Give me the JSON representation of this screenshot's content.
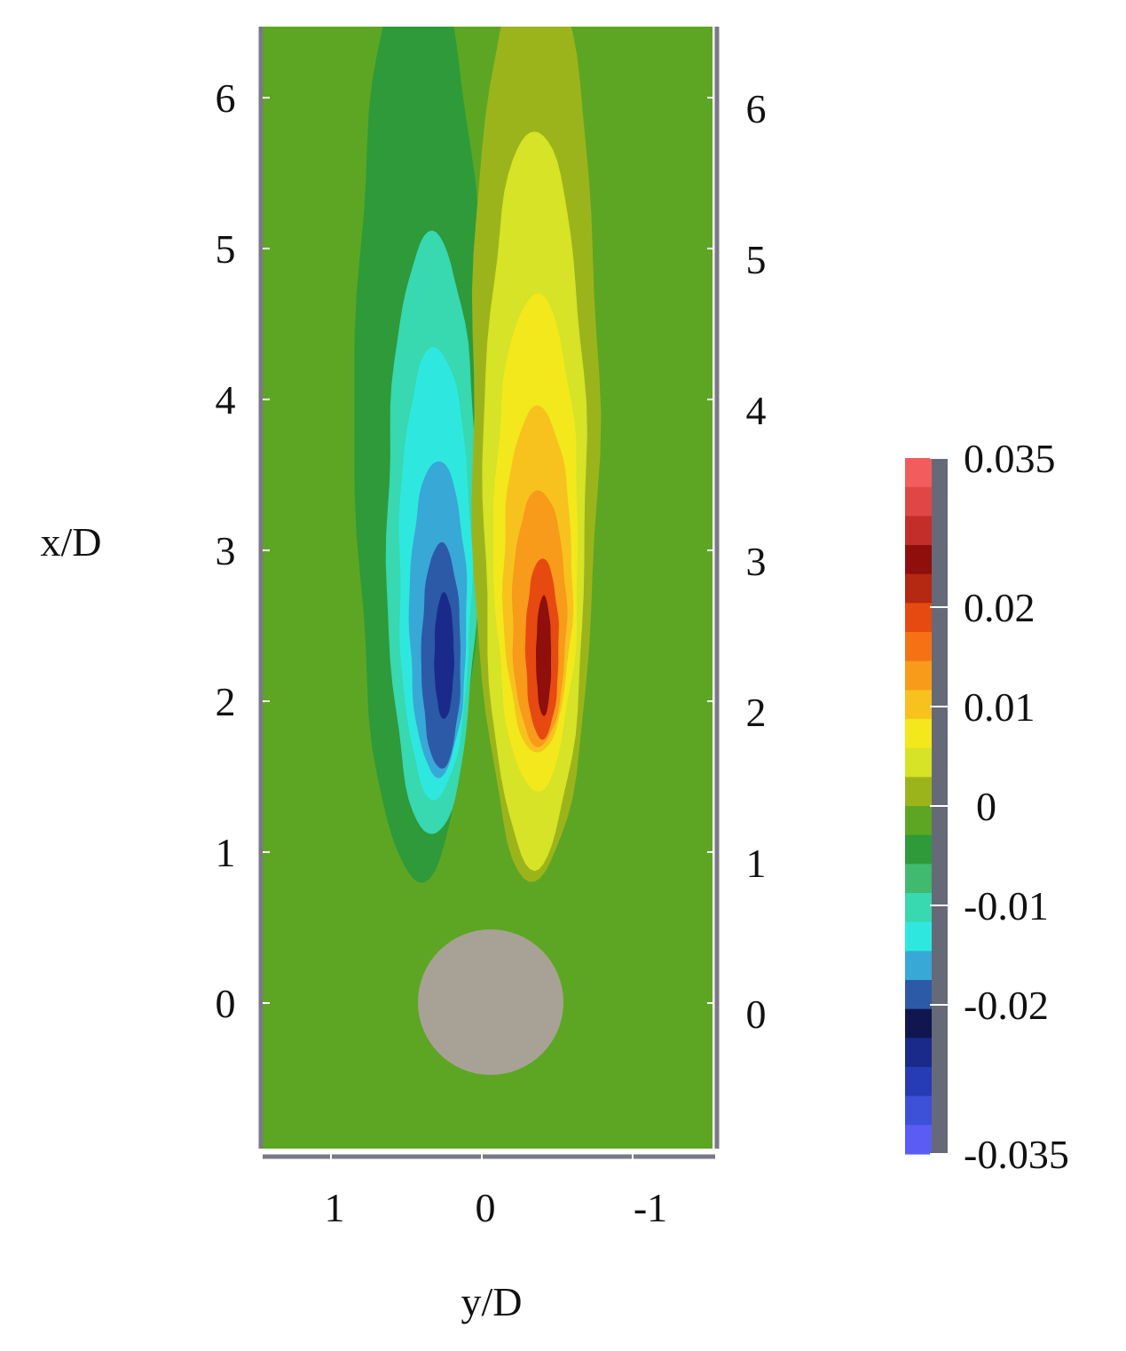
{
  "chart_data": {
    "type": "heatmap",
    "title": "",
    "xlabel": "y/D",
    "ylabel": "x/D",
    "x_axis": {
      "ticks": [
        1,
        0,
        -1
      ],
      "tick_labels": [
        "1",
        "0",
        "-1"
      ],
      "range": [
        1.5,
        -1.5
      ],
      "reversed": true
    },
    "y_axis": {
      "ticks": [
        0,
        1,
        2,
        3,
        4,
        5,
        6
      ],
      "tick_labels": [
        "0",
        "1",
        "2",
        "3",
        "4",
        "5",
        "6"
      ],
      "range": [
        -0.95,
        6.5
      ],
      "mirrored_right": true
    },
    "grid": false,
    "cylinder": {
      "center": [
        0,
        0
      ],
      "diameter": 1,
      "color": "#a8a296"
    },
    "colorbar": {
      "placement": "right",
      "min": -0.035,
      "max": 0.035,
      "tick_values": [
        0.035,
        0.02,
        0.01,
        0,
        -0.01,
        -0.02,
        -0.035
      ],
      "tick_labels": [
        "0.035",
        "0.02",
        "0.01",
        "0",
        "-0.01",
        "-0.02",
        "-0.035"
      ],
      "colors_top_to_bottom": [
        "#f25c5c",
        "#e04646",
        "#c42e2a",
        "#8e0f0c",
        "#b52812",
        "#e64a10",
        "#f57214",
        "#f89a1a",
        "#f7c21e",
        "#f2e81c",
        "#d6e326",
        "#9cb41c",
        "#5da623",
        "#2e9a3a",
        "#3fba6e",
        "#38d8b0",
        "#2ee8e0",
        "#38a8d6",
        "#2c5aa6",
        "#101650",
        "#1a2a8a",
        "#263cb4",
        "#3c50d8",
        "#5a5cf4"
      ]
    },
    "contours": {
      "background_level": -0.0025,
      "note_levels": "negative lobe at y/D>0, positive lobe at y/D<0",
      "negative_lobe": [
        {
          "level": -0.005,
          "cx": 0.42,
          "cy": 3.9,
          "rx": 0.42,
          "ry": 3.1
        },
        {
          "level": -0.01,
          "cx": 0.33,
          "cy": 3.1,
          "rx": 0.3,
          "ry": 2.0
        },
        {
          "level": -0.0125,
          "cx": 0.31,
          "cy": 2.85,
          "rx": 0.24,
          "ry": 1.5
        },
        {
          "level": -0.015,
          "cx": 0.29,
          "cy": 2.55,
          "rx": 0.19,
          "ry": 1.05
        },
        {
          "level": -0.02,
          "cx": 0.27,
          "cy": 2.3,
          "rx": 0.13,
          "ry": 0.75
        },
        {
          "level": -0.025,
          "cx": 0.25,
          "cy": 2.3,
          "rx": 0.065,
          "ry": 0.42
        }
      ],
      "positive_lobe": [
        {
          "level": 0.0025,
          "cx": -0.35,
          "cy": 3.9,
          "rx": 0.42,
          "ry": 3.1
        },
        {
          "level": 0.005,
          "cx": -0.35,
          "cy": 3.35,
          "rx": 0.34,
          "ry": 2.45
        },
        {
          "level": 0.0075,
          "cx": -0.36,
          "cy": 3.05,
          "rx": 0.28,
          "ry": 1.65
        },
        {
          "level": 0.01,
          "cx": -0.37,
          "cy": 2.8,
          "rx": 0.23,
          "ry": 1.15
        },
        {
          "level": 0.0125,
          "cx": -0.38,
          "cy": 2.55,
          "rx": 0.18,
          "ry": 0.85
        },
        {
          "level": 0.02,
          "cx": -0.4,
          "cy": 2.35,
          "rx": 0.11,
          "ry": 0.6
        },
        {
          "level": 0.025,
          "cx": -0.41,
          "cy": 2.3,
          "rx": 0.05,
          "ry": 0.4
        }
      ]
    }
  }
}
